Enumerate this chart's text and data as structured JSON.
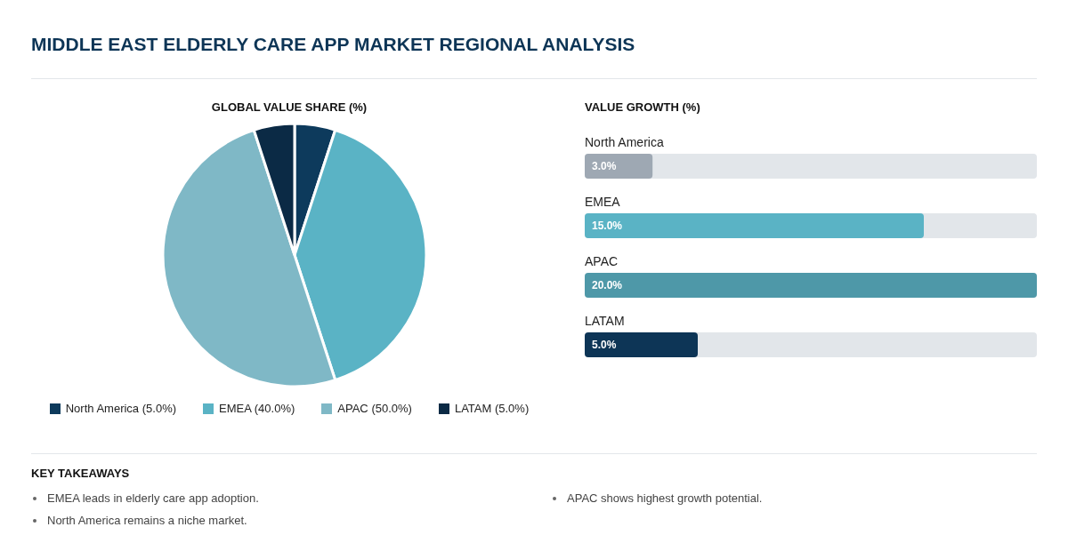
{
  "chart_data": [
    {
      "type": "other",
      "title": "MIDDLE EAST ELDERLY CARE APP MARKET REGIONAL ANALYSIS"
    },
    {
      "type": "pie",
      "title": "GLOBAL VALUE SHARE (%)",
      "categories": [
        "North America",
        "EMEA",
        "APAC",
        "LATAM"
      ],
      "values": [
        5,
        40,
        50,
        5
      ],
      "value_labels": [
        "(5.0%)",
        "(40.0%)",
        "(50.0%)",
        "(5.0%)"
      ],
      "colors": [
        "#0d3a5c",
        "#5ab3c5",
        "#7fb8c6",
        "#0b2a45"
      ],
      "legend": "bottom"
    },
    {
      "type": "bar",
      "orientation": "horizontal",
      "title": "VALUE GROWTH (%)",
      "categories": [
        "North America",
        "EMEA",
        "APAC",
        "LATAM"
      ],
      "values": [
        3,
        15,
        20,
        5
      ],
      "colors": [
        "#9ea8b3",
        "#5ab3c5",
        "#4e98a8",
        "#0d3556"
      ],
      "value_labels": [
        "3.0%",
        "15.0%",
        "20.0%",
        "5.0%"
      ],
      "xlim": [
        0,
        20
      ],
      "tick_labels": false
    },
    {
      "type": "other",
      "title": "KEY TAKEAWAYS",
      "annotations": [
        "EMEA leads in elderly care app adoption.",
        "North America remains a niche market.",
        "APAC shows highest growth potential."
      ]
    }
  ]
}
